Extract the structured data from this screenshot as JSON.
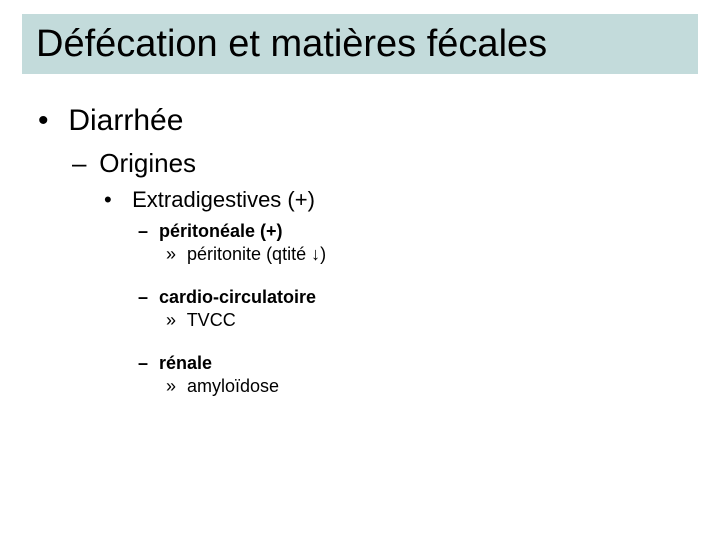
{
  "colors": {
    "title_band_bg": "#c3dbdb",
    "text": "#000000",
    "background": "#ffffff"
  },
  "typography": {
    "title_fontsize": 38,
    "lvl1_fontsize": 30,
    "lvl2_fontsize": 26,
    "lvl3_fontsize": 22,
    "lvl4_fontsize": 18,
    "lvl5_fontsize": 18,
    "lvl4_weight": "bold"
  },
  "title": "Défécation et matières fécales",
  "body": {
    "lvl1": "Diarrhée",
    "lvl2": "Origines",
    "lvl3": "Extradigestives (+)",
    "groups": [
      {
        "heading": "péritonéale (+)",
        "sub": "péritonite (qtité ↓)"
      },
      {
        "heading": "cardio-circulatoire",
        "sub": "TVCC"
      },
      {
        "heading": "rénale",
        "sub": "amyloïdose"
      }
    ]
  }
}
